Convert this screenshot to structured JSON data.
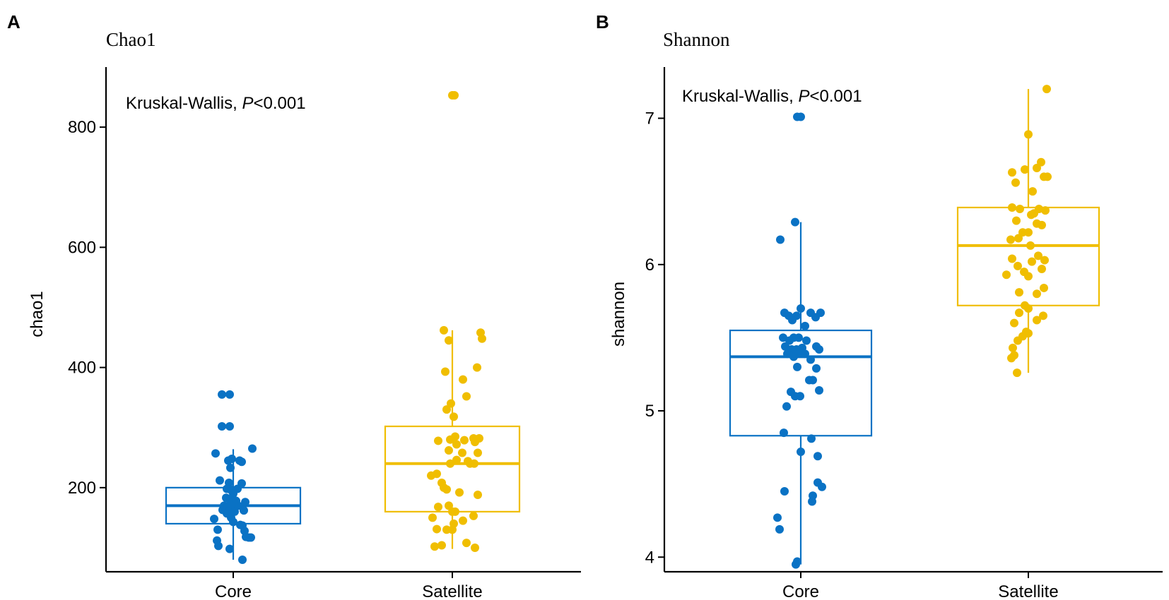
{
  "colors": {
    "core": "#0a72c4",
    "satellite": "#f0be00",
    "axis": "#000000"
  },
  "chart_data": [
    {
      "panel": "A",
      "type": "boxplot",
      "title": "Chao1",
      "xlabel": "",
      "ylabel": "chao1",
      "ylim": [
        60,
        900
      ],
      "yticks": [
        200,
        400,
        600,
        800
      ],
      "yticklabels": [
        "200",
        "400",
        "600",
        "800"
      ],
      "categories": [
        "Core",
        "Satellite"
      ],
      "annotation_prefix": "Kruskal-Wallis, ",
      "annotation_p": "P",
      "annotation_suffix": "<0.001",
      "groups": [
        {
          "name": "Core",
          "color_key": "core",
          "box": {
            "q1": 140,
            "median": 170,
            "q3": 200,
            "whisker_low": 80,
            "whisker_high": 264
          },
          "points": [
            [
              -0.16,
              355
            ],
            [
              -0.05,
              355
            ],
            [
              -0.16,
              302
            ],
            [
              -0.05,
              302
            ],
            [
              -0.25,
              257
            ],
            [
              0.27,
              265
            ],
            [
              -0.07,
              245
            ],
            [
              -0.02,
              248
            ],
            [
              0.09,
              245
            ],
            [
              0.12,
              243
            ],
            [
              -0.04,
              233
            ],
            [
              -0.19,
              212
            ],
            [
              -0.06,
              208
            ],
            [
              0.12,
              207
            ],
            [
              -0.09,
              198
            ],
            [
              -0.04,
              197
            ],
            [
              -0.02,
              195
            ],
            [
              0.06,
              198
            ],
            [
              0.0,
              190
            ],
            [
              -0.1,
              183
            ],
            [
              -0.04,
              178
            ],
            [
              0.04,
              178
            ],
            [
              0.17,
              176
            ],
            [
              -0.13,
              170
            ],
            [
              -0.03,
              170
            ],
            [
              0.0,
              165
            ],
            [
              0.07,
              170
            ],
            [
              -0.15,
              163
            ],
            [
              -0.06,
              160
            ],
            [
              0.02,
              160
            ],
            [
              0.15,
              162
            ],
            [
              -0.09,
              157
            ],
            [
              -0.03,
              150
            ],
            [
              -0.27,
              148
            ],
            [
              0.0,
              143
            ],
            [
              0.1,
              138
            ],
            [
              0.13,
              137
            ],
            [
              0.16,
              128
            ],
            [
              -0.22,
              130
            ],
            [
              0.18,
              118
            ],
            [
              0.22,
              117
            ],
            [
              0.25,
              117
            ],
            [
              -0.23,
              112
            ],
            [
              -0.21,
              103
            ],
            [
              -0.05,
              98
            ],
            [
              0.13,
              80
            ]
          ]
        },
        {
          "name": "Satellite",
          "color_key": "satellite",
          "box": {
            "q1": 160,
            "median": 240,
            "q3": 302,
            "whisker_low": 98,
            "whisker_high": 462
          },
          "points": [
            [
              0.0,
              853
            ],
            [
              0.03,
              853
            ],
            [
              -0.12,
              462
            ],
            [
              0.4,
              458
            ],
            [
              0.42,
              448
            ],
            [
              -0.05,
              445
            ],
            [
              0.35,
              400
            ],
            [
              -0.1,
              393
            ],
            [
              0.15,
              380
            ],
            [
              0.2,
              352
            ],
            [
              -0.02,
              340
            ],
            [
              -0.08,
              330
            ],
            [
              0.02,
              318
            ],
            [
              0.3,
              282
            ],
            [
              0.38,
              282
            ],
            [
              -0.03,
              280
            ],
            [
              0.04,
              285
            ],
            [
              0.17,
              279
            ],
            [
              -0.2,
              278
            ],
            [
              0.06,
              272
            ],
            [
              0.32,
              276
            ],
            [
              -0.05,
              262
            ],
            [
              0.14,
              258
            ],
            [
              0.36,
              258
            ],
            [
              0.22,
              244
            ],
            [
              0.25,
              240
            ],
            [
              0.06,
              246
            ],
            [
              0.31,
              240
            ],
            [
              -0.03,
              240
            ],
            [
              -0.22,
              223
            ],
            [
              -0.3,
              220
            ],
            [
              -0.15,
              208
            ],
            [
              -0.12,
              200
            ],
            [
              -0.08,
              197
            ],
            [
              0.1,
              192
            ],
            [
              0.36,
              188
            ],
            [
              -0.05,
              170
            ],
            [
              -0.2,
              168
            ],
            [
              0.0,
              160
            ],
            [
              0.04,
              160
            ],
            [
              -0.28,
              150
            ],
            [
              0.3,
              153
            ],
            [
              0.15,
              145
            ],
            [
              -0.22,
              131
            ],
            [
              -0.08,
              130
            ],
            [
              0.0,
              130
            ],
            [
              0.02,
              140
            ],
            [
              0.2,
              108
            ],
            [
              0.32,
              100
            ],
            [
              -0.15,
              104
            ],
            [
              -0.25,
              102
            ]
          ]
        }
      ]
    },
    {
      "panel": "B",
      "type": "boxplot",
      "title": "Shannon",
      "xlabel": "",
      "ylabel": "shannon",
      "ylim": [
        3.9,
        7.35
      ],
      "yticks": [
        4,
        5,
        6,
        7
      ],
      "yticklabels": [
        "4",
        "5",
        "6",
        "7"
      ],
      "categories": [
        "Core",
        "Satellite"
      ],
      "annotation_prefix": "Kruskal-Wallis, ",
      "annotation_p": "P",
      "annotation_suffix": "<0.001",
      "groups": [
        {
          "name": "Core",
          "color_key": "core",
          "box": {
            "q1": 4.83,
            "median": 5.37,
            "q3": 5.55,
            "whisker_low": 3.95,
            "whisker_high": 6.29
          },
          "points": [
            [
              -0.05,
              7.01
            ],
            [
              0.0,
              7.01
            ],
            [
              -0.08,
              6.29
            ],
            [
              -0.29,
              6.17
            ],
            [
              0.0,
              5.7
            ],
            [
              -0.23,
              5.67
            ],
            [
              -0.17,
              5.65
            ],
            [
              -0.06,
              5.65
            ],
            [
              0.14,
              5.67
            ],
            [
              0.28,
              5.67
            ],
            [
              0.21,
              5.64
            ],
            [
              -0.12,
              5.62
            ],
            [
              0.06,
              5.58
            ],
            [
              -0.1,
              5.5
            ],
            [
              -0.03,
              5.5
            ],
            [
              -0.25,
              5.5
            ],
            [
              -0.16,
              5.48
            ],
            [
              0.08,
              5.48
            ],
            [
              -0.22,
              5.44
            ],
            [
              0.02,
              5.43
            ],
            [
              0.22,
              5.44
            ],
            [
              -0.13,
              5.42
            ],
            [
              -0.06,
              5.42
            ],
            [
              -0.01,
              5.4
            ],
            [
              0.26,
              5.42
            ],
            [
              -0.19,
              5.39
            ],
            [
              0.06,
              5.39
            ],
            [
              -0.1,
              5.37
            ],
            [
              0.14,
              5.35
            ],
            [
              -0.05,
              5.3
            ],
            [
              0.22,
              5.29
            ],
            [
              0.12,
              5.21
            ],
            [
              0.17,
              5.21
            ],
            [
              -0.14,
              5.13
            ],
            [
              0.26,
              5.14
            ],
            [
              -0.08,
              5.1
            ],
            [
              -0.01,
              5.1
            ],
            [
              -0.2,
              5.03
            ],
            [
              -0.24,
              4.85
            ],
            [
              0.15,
              4.81
            ],
            [
              0.24,
              4.69
            ],
            [
              0.0,
              4.72
            ],
            [
              0.24,
              4.51
            ],
            [
              0.3,
              4.48
            ],
            [
              -0.23,
              4.45
            ],
            [
              0.17,
              4.42
            ],
            [
              0.16,
              4.38
            ],
            [
              -0.33,
              4.27
            ],
            [
              -0.3,
              4.19
            ],
            [
              -0.07,
              3.95
            ],
            [
              -0.05,
              3.97
            ]
          ]
        },
        {
          "name": "Satellite",
          "color_key": "satellite",
          "box": {
            "q1": 5.72,
            "median": 6.13,
            "q3": 6.39,
            "whisker_low": 5.26,
            "whisker_high": 7.2
          },
          "points": [
            [
              0.26,
              7.2
            ],
            [
              0.0,
              6.89
            ],
            [
              0.18,
              6.7
            ],
            [
              0.12,
              6.66
            ],
            [
              -0.23,
              6.63
            ],
            [
              -0.05,
              6.65
            ],
            [
              0.27,
              6.6
            ],
            [
              0.22,
              6.6
            ],
            [
              -0.18,
              6.56
            ],
            [
              0.06,
              6.5
            ],
            [
              -0.23,
              6.39
            ],
            [
              -0.12,
              6.38
            ],
            [
              0.08,
              6.35
            ],
            [
              0.15,
              6.38
            ],
            [
              0.24,
              6.37
            ],
            [
              0.04,
              6.34
            ],
            [
              -0.17,
              6.3
            ],
            [
              0.12,
              6.28
            ],
            [
              0.19,
              6.27
            ],
            [
              -0.08,
              6.22
            ],
            [
              0.0,
              6.22
            ],
            [
              -0.14,
              6.18
            ],
            [
              -0.25,
              6.17
            ],
            [
              0.03,
              6.13
            ],
            [
              0.14,
              6.06
            ],
            [
              -0.23,
              6.04
            ],
            [
              0.23,
              6.03
            ],
            [
              0.05,
              6.02
            ],
            [
              -0.15,
              5.99
            ],
            [
              0.19,
              5.97
            ],
            [
              -0.06,
              5.95
            ],
            [
              -0.31,
              5.93
            ],
            [
              0.0,
              5.92
            ],
            [
              0.22,
              5.84
            ],
            [
              0.12,
              5.8
            ],
            [
              -0.13,
              5.81
            ],
            [
              -0.05,
              5.72
            ],
            [
              0.0,
              5.7
            ],
            [
              -0.13,
              5.67
            ],
            [
              0.12,
              5.62
            ],
            [
              0.21,
              5.65
            ],
            [
              -0.2,
              5.6
            ],
            [
              -0.03,
              5.54
            ],
            [
              0.0,
              5.53
            ],
            [
              -0.08,
              5.51
            ],
            [
              -0.15,
              5.48
            ],
            [
              -0.22,
              5.43
            ],
            [
              -0.24,
              5.36
            ],
            [
              -0.2,
              5.38
            ],
            [
              -0.16,
              5.26
            ]
          ]
        }
      ]
    }
  ]
}
